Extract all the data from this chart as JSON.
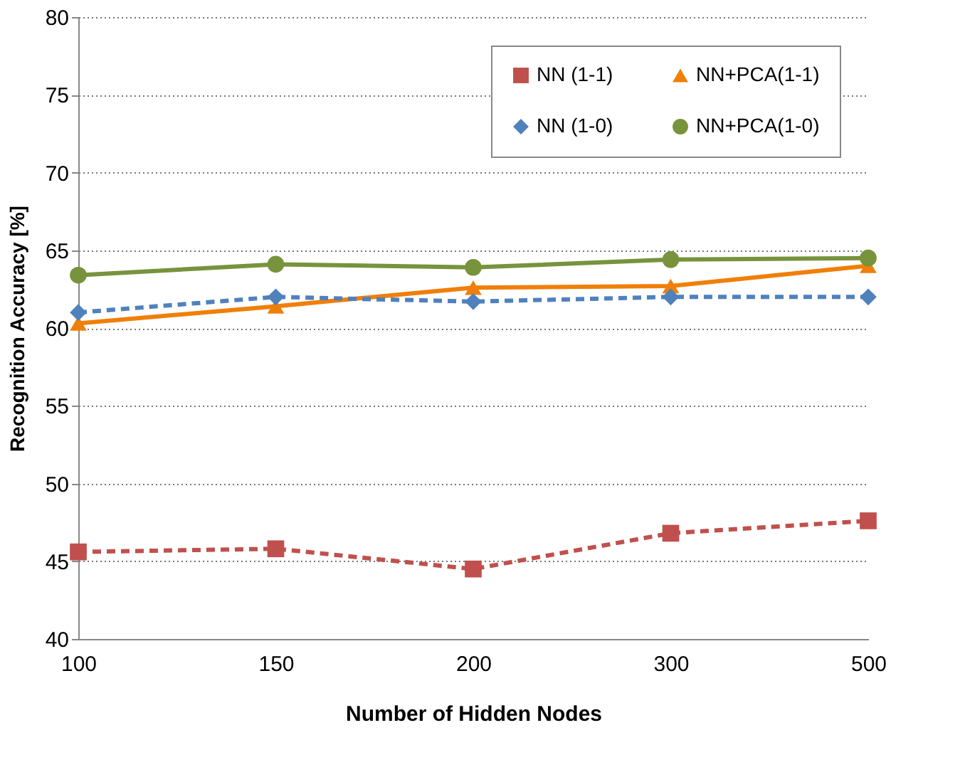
{
  "chart_data": {
    "type": "line",
    "xlabel": "Number of Hidden Nodes",
    "ylabel": "Recognition Accuracy  [%]",
    "categories": [
      "100",
      "150",
      "200",
      "300",
      "500"
    ],
    "ylim": [
      40,
      80
    ],
    "yticks": [
      40,
      45,
      50,
      55,
      60,
      65,
      70,
      75,
      80
    ],
    "grid": "y",
    "legend": "top right",
    "series": [
      {
        "name": "NN (1-1)",
        "color": "#c0504d",
        "marker": "square",
        "line_style": "dashed",
        "values": [
          45.6,
          45.8,
          44.5,
          46.8,
          47.6
        ]
      },
      {
        "name": "NN+PCA(1-1)",
        "color": "#f07f09",
        "marker": "triangle",
        "line_style": "solid",
        "values": [
          60.3,
          61.4,
          62.6,
          62.7,
          64.0
        ]
      },
      {
        "name": "NN (1-0)",
        "color": "#4f81bd",
        "marker": "diamond",
        "line_style": "dashed",
        "values": [
          61.0,
          62.0,
          61.7,
          62.0,
          62.0
        ]
      },
      {
        "name": "NN+PCA(1-0)",
        "color": "#77933c",
        "marker": "circle",
        "line_style": "solid",
        "values": [
          63.4,
          64.1,
          63.9,
          64.4,
          64.5
        ]
      }
    ]
  }
}
